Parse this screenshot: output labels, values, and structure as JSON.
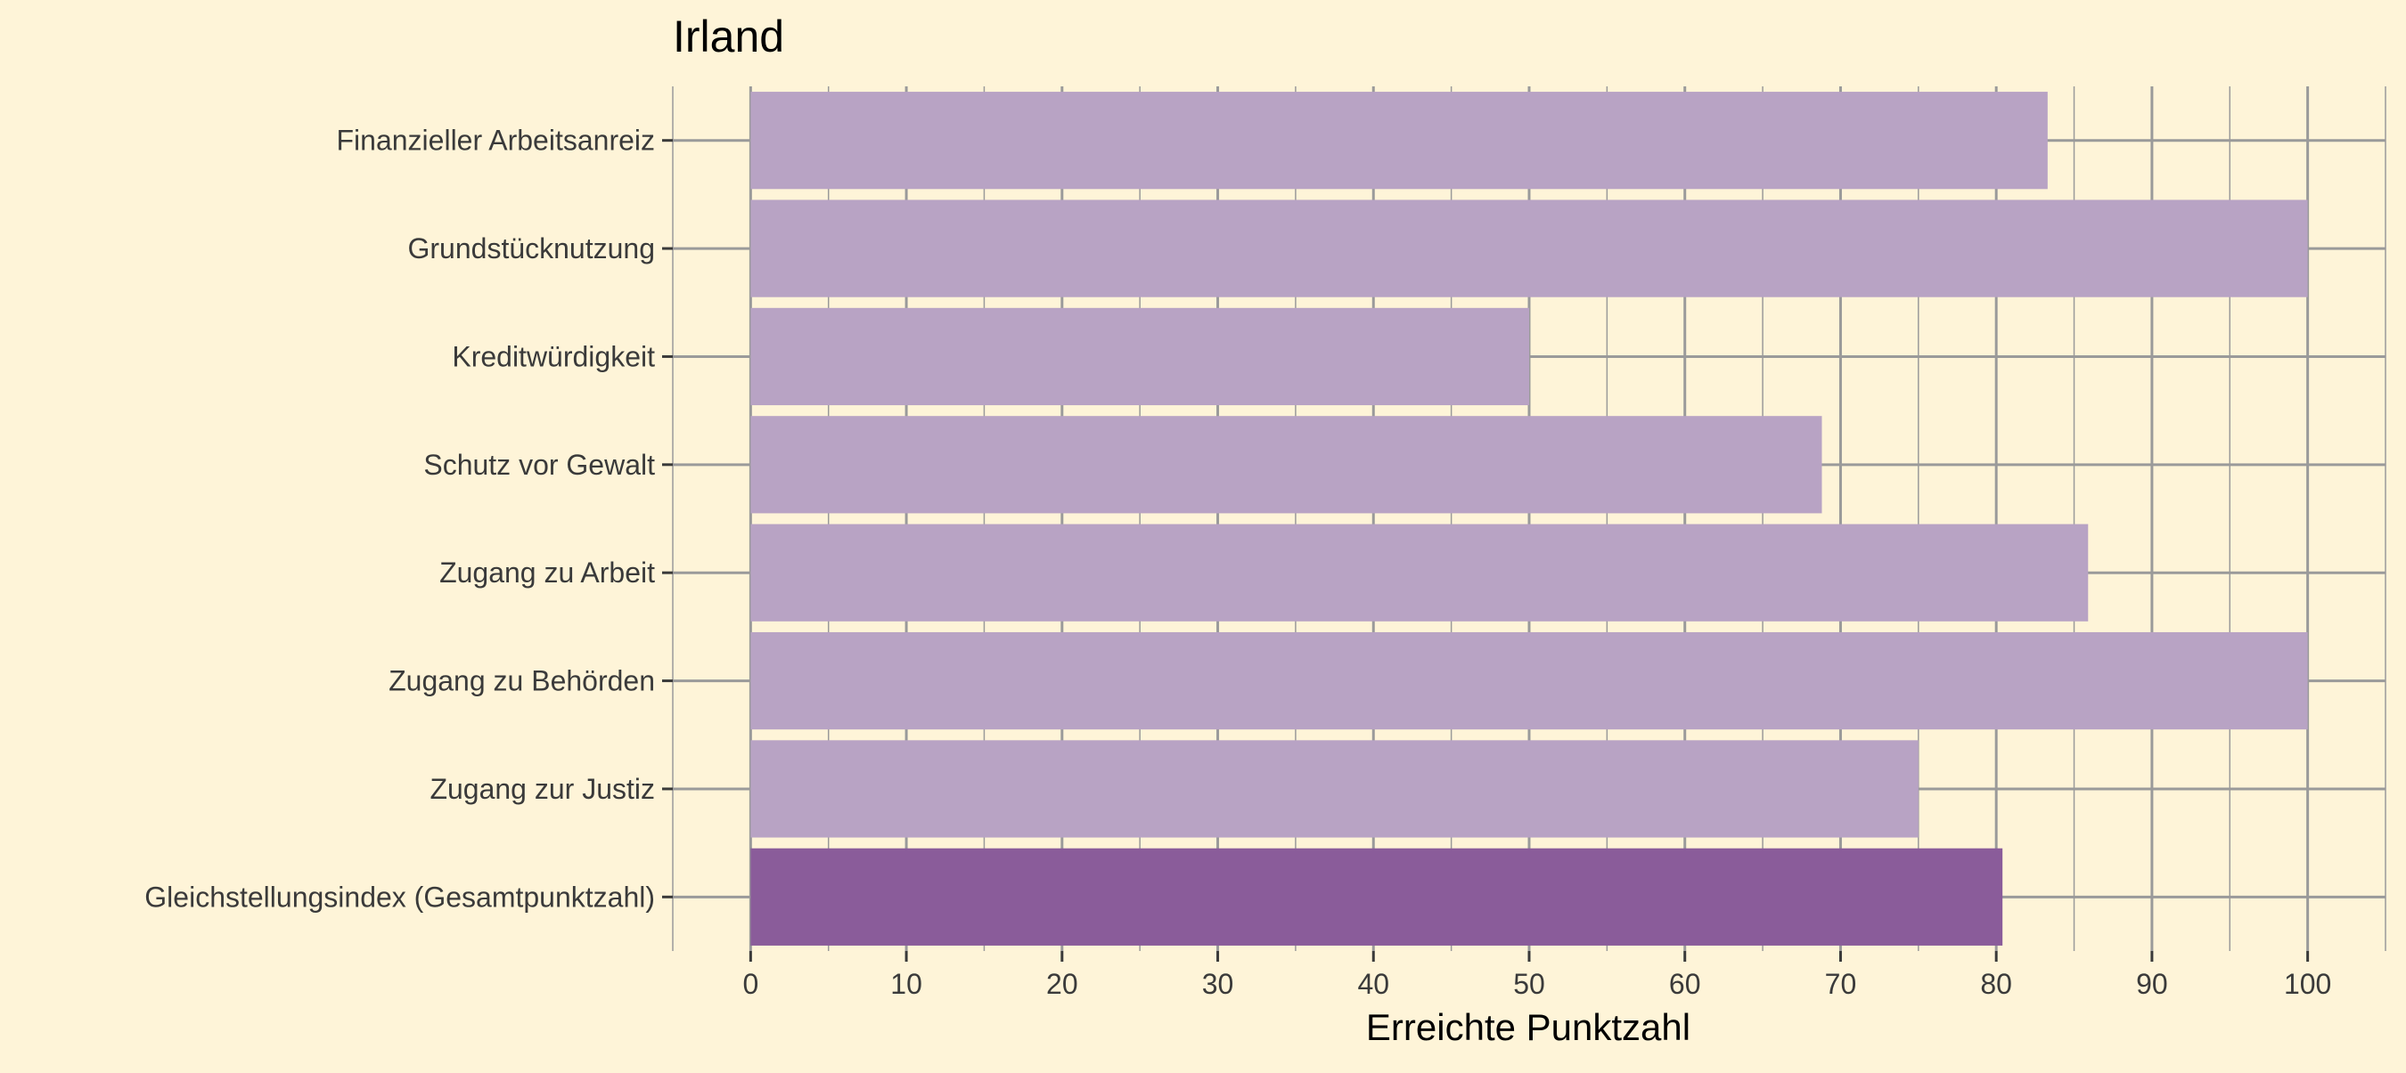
{
  "chart_data": {
    "type": "bar",
    "orientation": "horizontal",
    "title": "Irland",
    "xlabel": "Erreichte Punktzahl",
    "ylabel": "",
    "xlim": [
      -5,
      105
    ],
    "major_ticks": [
      0,
      10,
      20,
      30,
      40,
      50,
      60,
      70,
      80,
      90,
      100
    ],
    "minor_ticks": [
      -5,
      5,
      15,
      25,
      35,
      45,
      55,
      65,
      75,
      85,
      95,
      105
    ],
    "grid": true,
    "legend": "none",
    "categories": [
      "Finanzieller Arbeitsanreiz",
      "Grundstücknutzung",
      "Kreditwürdigkeit",
      "Schutz vor Gewalt",
      "Zugang zu Arbeit",
      "Zugang zu Behörden",
      "Zugang zur Justiz",
      "Gleichstellungsindex (Gesamtpunktzahl)"
    ],
    "values": [
      83.3,
      100,
      50,
      68.8,
      85.9,
      100,
      75,
      80.4
    ],
    "bar_colors": [
      "#b8a3c4",
      "#b8a3c4",
      "#b8a3c4",
      "#b8a3c4",
      "#b8a3c4",
      "#b8a3c4",
      "#b8a3c4",
      "#8a5c9a"
    ]
  },
  "colors": {
    "background": "#fef4d8",
    "grid": "#9a9a9a",
    "text": "#3a3a3a",
    "title": "#000000"
  }
}
